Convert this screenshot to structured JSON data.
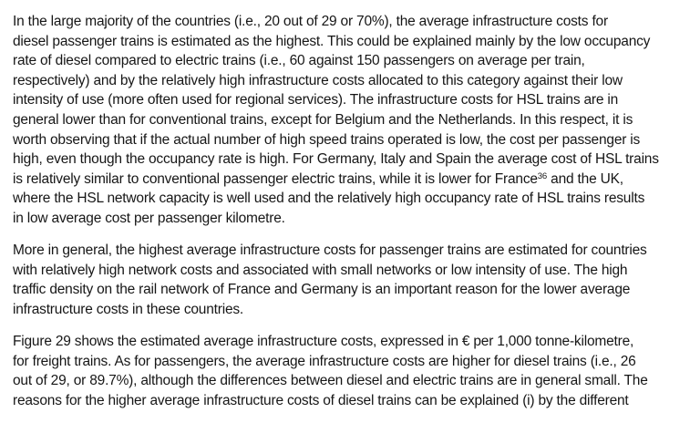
{
  "page": {
    "background_color": "#ffffff",
    "text_color": "#161616"
  },
  "document": {
    "paragraphs": [
      {
        "lines": [
          "In the large majority of the countries (i.e., 20 out of 29 or 70%), the average infrastructure costs for",
          "diesel passenger trains is estimated as the highest. This could be explained mainly by the low occupancy",
          "rate of diesel compared to electric trains (i.e., 60 against 150 passengers on average per train,",
          "respectively) and by the relatively high infrastructure costs allocated to this category against their low",
          "intensity of use (more often used for regional services). The infrastructure costs for HSL trains are in",
          "general lower than for conventional trains, except for Belgium and the Netherlands. In this respect, it is",
          "worth observing that if the actual number of high speed trains operated is low, the cost per passenger is",
          "high, even though the occupancy rate is high. For Germany, Italy and Spain the average cost of HSL trains",
          [
            "is relatively similar to conventional passenger electric trains, while it is lower for France",
            {
              "t": "36",
              "sup": true
            },
            " and the UK,"
          ],
          "where the HSL network capacity is well used and the relatively high occupancy rate of HSL trains results",
          "in low average cost per passenger kilometre."
        ]
      },
      {
        "lines": [
          "More in general, the highest average infrastructure costs for passenger trains are estimated for countries",
          "with relatively high network costs and associated with small networks or low intensity of use. The high",
          "traffic density on the rail network of France and Germany is an important reason for the lower average",
          "infrastructure costs in these countries."
        ]
      },
      {
        "lines": [
          "Figure 29 shows the estimated average infrastructure costs, expressed in € per 1,000 tonne-kilometre,",
          "for freight trains. As for passengers, the average infrastructure costs are higher for diesel trains (i.e., 26",
          "out of 29, or 89.7%), although the differences between diesel and electric trains are in general small. The",
          "reasons for the higher average infrastructure costs of diesel trains can be explained (i) by the different"
        ]
      }
    ]
  }
}
